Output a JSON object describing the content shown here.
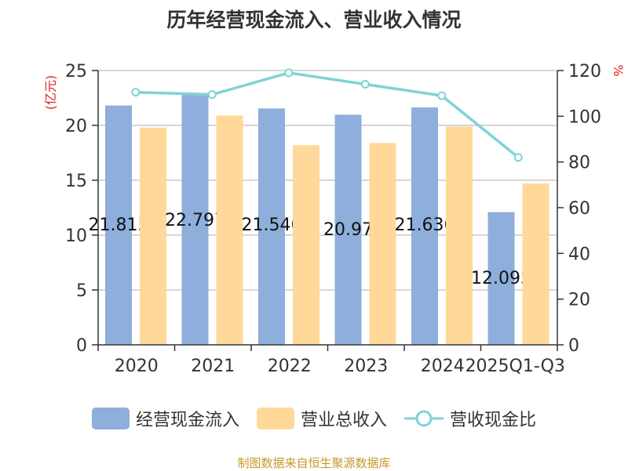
{
  "title": "历年经营现金流入、营业收入情况",
  "source": "制图数据来自恒生聚源数据库",
  "colors": {
    "bar1": "#8eaedb",
    "bar2": "#ffd89a",
    "line": "#7fd3d6",
    "left_unit": "#e02020"
  },
  "chart_data": {
    "type": "bar+line",
    "categories": [
      "2020",
      "2021",
      "2022",
      "2023",
      "2024",
      "2025Q1-Q3"
    ],
    "left_axis": {
      "label": "(亿元)",
      "range": [
        0,
        25
      ],
      "ticks": [
        0,
        5,
        10,
        15,
        20,
        25
      ]
    },
    "right_axis": {
      "label": "%",
      "range": [
        0,
        120
      ],
      "ticks": [
        0,
        20,
        40,
        60,
        80,
        100,
        120
      ]
    },
    "grid": true,
    "legend_position": "bottom",
    "series": [
      {
        "name": "经营现金流入",
        "type": "bar",
        "axis": "left",
        "values": [
          21.815,
          22.797,
          21.546,
          20.97,
          21.636,
          12.095
        ],
        "labels": [
          "21.815",
          "22.797",
          "21.546",
          "20.97",
          "21.636",
          "12.095"
        ]
      },
      {
        "name": "营业总收入",
        "type": "bar",
        "axis": "left",
        "values": [
          19.8,
          20.9,
          18.2,
          18.4,
          19.9,
          14.7
        ]
      },
      {
        "name": "营收现金比",
        "type": "line",
        "axis": "right",
        "values": [
          110.5,
          109.5,
          119,
          114,
          109,
          82
        ]
      }
    ]
  }
}
